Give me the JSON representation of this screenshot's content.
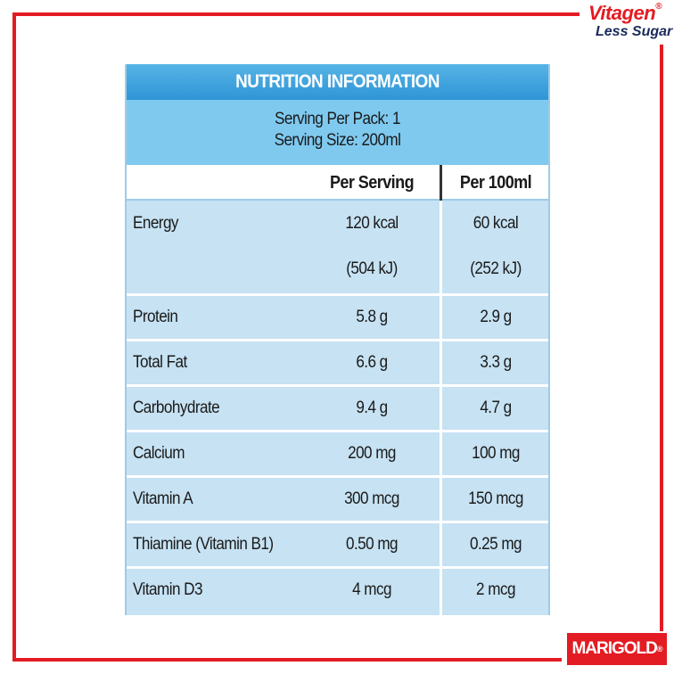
{
  "brand": {
    "name": "Vitagen",
    "registered": "®",
    "tagline": "Less Sugar"
  },
  "maker": {
    "name": "MARIGOLD",
    "registered": "®"
  },
  "table": {
    "title": "NUTRITION INFORMATION",
    "serving_per_pack": "Serving Per Pack: 1",
    "serving_size": "Serving Size: 200ml",
    "columns": [
      "Per Serving",
      "Per 100ml"
    ],
    "rows": [
      {
        "label": "Energy",
        "per_serving": [
          "120 kcal",
          "(504 kJ)"
        ],
        "per_100ml": [
          "60 kcal",
          "(252 kJ)"
        ]
      },
      {
        "label": "Protein",
        "per_serving": [
          "5.8 g"
        ],
        "per_100ml": [
          "2.9 g"
        ]
      },
      {
        "label": "Total Fat",
        "per_serving": [
          "6.6 g"
        ],
        "per_100ml": [
          "3.3 g"
        ]
      },
      {
        "label": "Carbohydrate",
        "per_serving": [
          "9.4 g"
        ],
        "per_100ml": [
          "4.7 g"
        ]
      },
      {
        "label": "Calcium",
        "per_serving": [
          "200 mg"
        ],
        "per_100ml": [
          "100 mg"
        ]
      },
      {
        "label": "Vitamin A",
        "per_serving": [
          "300 mcg"
        ],
        "per_100ml": [
          "150 mcg"
        ]
      },
      {
        "label": "Thiamine (Vitamin B1)",
        "per_serving": [
          "0.50 mg"
        ],
        "per_100ml": [
          "0.25 mg"
        ]
      },
      {
        "label": "Vitamin D3",
        "per_serving": [
          "4 mcg"
        ],
        "per_100ml": [
          "2 mcg"
        ]
      }
    ]
  }
}
